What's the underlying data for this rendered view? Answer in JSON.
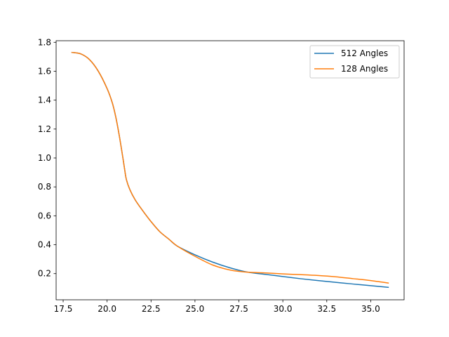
{
  "chart_data": {
    "type": "line",
    "title": "",
    "xlabel": "",
    "ylabel": "",
    "xlim": [
      17.1,
      36.9
    ],
    "ylim": [
      0.019,
      1.811
    ],
    "grid": false,
    "legend_placement": "top-right",
    "x_ticks": [
      17.5,
      20.0,
      22.5,
      25.0,
      27.5,
      30.0,
      32.5,
      35.0
    ],
    "x_tick_labels": [
      "17.5",
      "20.0",
      "22.5",
      "25.0",
      "27.5",
      "30.0",
      "32.5",
      "35.0"
    ],
    "y_ticks": [
      0.2,
      0.4,
      0.6,
      0.8,
      1.0,
      1.2,
      1.4,
      1.6,
      1.8
    ],
    "y_tick_labels": [
      "0.2",
      "0.4",
      "0.6",
      "0.8",
      "1.0",
      "1.2",
      "1.4",
      "1.6",
      "1.8"
    ],
    "series": [
      {
        "name": "512 Angles",
        "color": "#1f77b4",
        "x": [
          18.0,
          18.5,
          19.0,
          19.5,
          20.0,
          20.3,
          20.5,
          20.7,
          20.9,
          21.0,
          21.1,
          21.3,
          21.6,
          22.0,
          22.5,
          23.0,
          23.5,
          24.0,
          25.0,
          26.0,
          27.0,
          28.0,
          29.0,
          30.0,
          31.0,
          32.0,
          33.0,
          34.0,
          35.0,
          36.0
        ],
        "y": [
          1.73,
          1.72,
          1.68,
          1.6,
          1.48,
          1.38,
          1.28,
          1.15,
          1.0,
          0.92,
          0.85,
          0.78,
          0.71,
          0.64,
          0.56,
          0.49,
          0.44,
          0.39,
          0.33,
          0.28,
          0.24,
          0.21,
          0.195,
          0.18,
          0.165,
          0.152,
          0.14,
          0.128,
          0.117,
          0.105
        ]
      },
      {
        "name": "128 Angles",
        "color": "#ff7f0e",
        "x": [
          18.0,
          18.5,
          19.0,
          19.5,
          20.0,
          20.3,
          20.5,
          20.7,
          20.9,
          21.0,
          21.1,
          21.3,
          21.6,
          22.0,
          22.5,
          23.0,
          23.5,
          24.0,
          25.0,
          26.0,
          27.0,
          28.0,
          29.0,
          30.0,
          31.0,
          32.0,
          33.0,
          34.0,
          35.0,
          36.0
        ],
        "y": [
          1.73,
          1.72,
          1.68,
          1.6,
          1.48,
          1.38,
          1.28,
          1.15,
          1.0,
          0.92,
          0.85,
          0.78,
          0.71,
          0.64,
          0.56,
          0.49,
          0.44,
          0.39,
          0.32,
          0.26,
          0.225,
          0.21,
          0.205,
          0.198,
          0.193,
          0.187,
          0.178,
          0.165,
          0.152,
          0.135
        ]
      }
    ]
  }
}
